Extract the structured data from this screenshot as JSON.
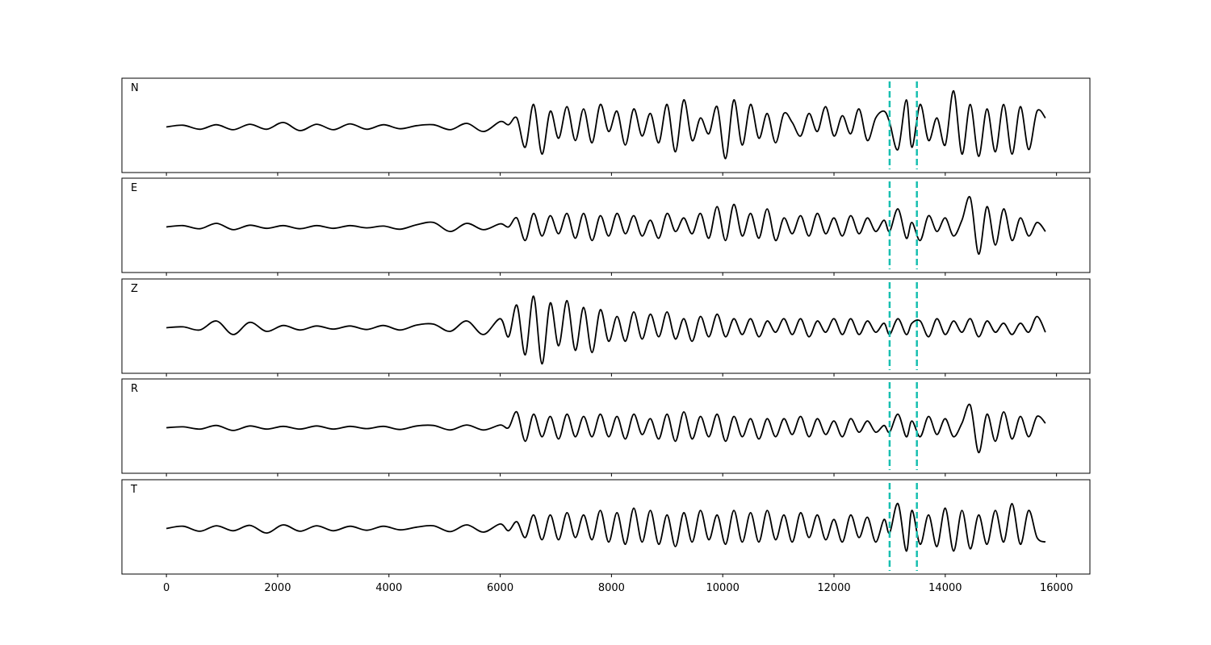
{
  "chart_data": {
    "type": "line",
    "layout": "stacked-panels",
    "grid": false,
    "xlim": [
      -800,
      16600
    ],
    "xticks": [
      0,
      2000,
      4000,
      6000,
      8000,
      10000,
      12000,
      14000,
      16000
    ],
    "markers": {
      "color": "#17bfb0",
      "style": "dashed",
      "x": [
        13000,
        13490
      ]
    },
    "trace_color": "#000000",
    "x_end": 15800,
    "panels": [
      {
        "label": "N",
        "series": {
          "x": [
            0,
            300,
            600,
            900,
            1200,
            1500,
            1800,
            2100,
            2400,
            2700,
            3000,
            3300,
            3600,
            3900,
            4200,
            4500,
            4800,
            5100,
            5400,
            5700,
            6000,
            6150,
            6300,
            6450,
            6600,
            6750,
            6900,
            7050,
            7200,
            7350,
            7500,
            7650,
            7800,
            7950,
            8100,
            8250,
            8400,
            8550,
            8700,
            8850,
            9000,
            9150,
            9300,
            9450,
            9600,
            9750,
            9900,
            10050,
            10200,
            10350,
            10500,
            10650,
            10800,
            10950,
            11100,
            11250,
            11400,
            11550,
            11700,
            11850,
            12000,
            12150,
            12300,
            12450,
            12600,
            12750,
            12900,
            13000,
            13150,
            13300,
            13400,
            13550,
            13700,
            13850,
            14000,
            14150,
            14300,
            14450,
            14600,
            14750,
            14900,
            15050,
            15200,
            15350,
            15500,
            15650,
            15800
          ],
          "y": [
            0,
            0.04,
            -0.05,
            0.05,
            -0.06,
            0.06,
            -0.05,
            0.1,
            -0.08,
            0.06,
            -0.06,
            0.07,
            -0.05,
            0.05,
            -0.04,
            0.03,
            0.05,
            -0.06,
            0.08,
            -0.1,
            0.12,
            0.05,
            0.2,
            -0.45,
            0.5,
            -0.6,
            0.35,
            -0.25,
            0.45,
            -0.3,
            0.4,
            -0.35,
            0.5,
            -0.1,
            0.35,
            -0.4,
            0.4,
            -0.2,
            0.3,
            -0.35,
            0.5,
            -0.55,
            0.6,
            -0.3,
            0.2,
            -0.15,
            0.45,
            -0.7,
            0.6,
            -0.4,
            0.5,
            -0.25,
            0.3,
            -0.35,
            0.3,
            0.1,
            -0.2,
            0.3,
            -0.1,
            0.45,
            -0.2,
            0.25,
            -0.15,
            0.4,
            -0.3,
            0.2,
            0.35,
            0.1,
            -0.5,
            0.6,
            -0.45,
            0.5,
            -0.3,
            0.2,
            -0.4,
            0.8,
            -0.6,
            0.5,
            -0.65,
            0.4,
            -0.55,
            0.5,
            -0.6,
            0.45,
            -0.5,
            0.35,
            0.2
          ]
        }
      },
      {
        "label": "E",
        "series": {
          "x": [
            0,
            300,
            600,
            900,
            1200,
            1500,
            1800,
            2100,
            2400,
            2700,
            3000,
            3300,
            3600,
            3900,
            4200,
            4500,
            4800,
            5100,
            5400,
            5700,
            6000,
            6150,
            6300,
            6450,
            6600,
            6750,
            6900,
            7050,
            7200,
            7350,
            7500,
            7650,
            7800,
            7950,
            8100,
            8250,
            8400,
            8550,
            8700,
            8850,
            9000,
            9150,
            9300,
            9450,
            9600,
            9750,
            9900,
            10050,
            10200,
            10350,
            10500,
            10650,
            10800,
            10950,
            11100,
            11250,
            11400,
            11550,
            11700,
            11850,
            12000,
            12150,
            12300,
            12450,
            12600,
            12750,
            12900,
            13000,
            13150,
            13300,
            13400,
            13550,
            13700,
            13850,
            14000,
            14150,
            14300,
            14450,
            14600,
            14750,
            14900,
            15050,
            15200,
            15350,
            15500,
            15650,
            15800
          ],
          "y": [
            0,
            0.03,
            -0.04,
            0.08,
            -0.06,
            0.04,
            -0.03,
            0.03,
            -0.04,
            0.03,
            -0.03,
            0.03,
            -0.02,
            0.02,
            -0.05,
            0.05,
            0.1,
            -0.1,
            0.08,
            -0.06,
            0.07,
            0.0,
            0.2,
            -0.3,
            0.3,
            -0.2,
            0.25,
            -0.15,
            0.3,
            -0.25,
            0.3,
            -0.3,
            0.25,
            -0.2,
            0.3,
            -0.15,
            0.25,
            -0.2,
            0.15,
            -0.25,
            0.3,
            -0.1,
            0.2,
            -0.15,
            0.3,
            -0.25,
            0.45,
            -0.3,
            0.5,
            -0.2,
            0.3,
            -0.25,
            0.4,
            -0.3,
            0.2,
            -0.15,
            0.25,
            -0.2,
            0.3,
            -0.15,
            0.2,
            -0.2,
            0.25,
            -0.15,
            0.2,
            -0.1,
            0.15,
            -0.1,
            0.4,
            -0.25,
            0.1,
            -0.3,
            0.25,
            -0.1,
            0.2,
            -0.2,
            0.15,
            0.65,
            -0.6,
            0.45,
            -0.4,
            0.4,
            -0.3,
            0.2,
            -0.2,
            0.1,
            -0.1
          ]
        }
      },
      {
        "label": "Z",
        "series": {
          "x": [
            0,
            300,
            600,
            900,
            1200,
            1500,
            1800,
            2100,
            2400,
            2700,
            3000,
            3300,
            3600,
            3900,
            4200,
            4500,
            4800,
            5100,
            5400,
            5700,
            6000,
            6150,
            6300,
            6450,
            6600,
            6750,
            6900,
            7050,
            7200,
            7350,
            7500,
            7650,
            7800,
            7950,
            8100,
            8250,
            8400,
            8550,
            8700,
            8850,
            9000,
            9150,
            9300,
            9450,
            9600,
            9750,
            9900,
            10050,
            10200,
            10350,
            10500,
            10650,
            10800,
            10950,
            11100,
            11250,
            11400,
            11550,
            11700,
            11850,
            12000,
            12150,
            12300,
            12450,
            12600,
            12750,
            12900,
            13000,
            13150,
            13300,
            13400,
            13550,
            13700,
            13850,
            14000,
            14150,
            14300,
            14450,
            14600,
            14750,
            14900,
            15050,
            15200,
            15350,
            15500,
            15650,
            15800
          ],
          "y": [
            0,
            0.02,
            -0.05,
            0.15,
            -0.15,
            0.12,
            -0.08,
            0.05,
            -0.05,
            0.04,
            -0.03,
            0.04,
            -0.04,
            0.05,
            -0.05,
            0.06,
            0.08,
            -0.08,
            0.15,
            -0.15,
            0.2,
            -0.2,
            0.5,
            -0.6,
            0.7,
            -0.8,
            0.55,
            -0.4,
            0.6,
            -0.5,
            0.45,
            -0.55,
            0.4,
            -0.3,
            0.25,
            -0.3,
            0.35,
            -0.25,
            0.3,
            -0.2,
            0.35,
            -0.25,
            0.2,
            -0.3,
            0.25,
            -0.2,
            0.3,
            -0.2,
            0.2,
            -0.15,
            0.2,
            -0.2,
            0.15,
            -0.1,
            0.2,
            -0.15,
            0.2,
            -0.2,
            0.15,
            -0.1,
            0.2,
            -0.15,
            0.2,
            -0.15,
            0.15,
            -0.1,
            0.1,
            -0.15,
            0.2,
            -0.15,
            0.1,
            0.15,
            -0.2,
            0.2,
            -0.15,
            0.15,
            -0.1,
            0.2,
            -0.2,
            0.15,
            -0.1,
            0.1,
            -0.15,
            0.1,
            -0.1,
            0.25,
            -0.1
          ]
        }
      },
      {
        "label": "R",
        "series": {
          "x": [
            0,
            300,
            600,
            900,
            1200,
            1500,
            1800,
            2100,
            2400,
            2700,
            3000,
            3300,
            3600,
            3900,
            4200,
            4500,
            4800,
            5100,
            5400,
            5700,
            6000,
            6150,
            6300,
            6450,
            6600,
            6750,
            6900,
            7050,
            7200,
            7350,
            7500,
            7650,
            7800,
            7950,
            8100,
            8250,
            8400,
            8550,
            8700,
            8850,
            9000,
            9150,
            9300,
            9450,
            9600,
            9750,
            9900,
            10050,
            10200,
            10350,
            10500,
            10650,
            10800,
            10950,
            11100,
            11250,
            11400,
            11550,
            11700,
            11850,
            12000,
            12150,
            12300,
            12450,
            12600,
            12750,
            12900,
            13000,
            13150,
            13300,
            13400,
            13550,
            13700,
            13850,
            14000,
            14150,
            14300,
            14450,
            14600,
            14750,
            14900,
            15050,
            15200,
            15350,
            15500,
            15650,
            15800
          ],
          "y": [
            0,
            0.02,
            -0.03,
            0.05,
            -0.06,
            0.04,
            -0.03,
            0.03,
            -0.03,
            0.04,
            -0.03,
            0.03,
            -0.02,
            0.03,
            -0.04,
            0.04,
            0.05,
            -0.05,
            0.06,
            -0.05,
            0.06,
            0.0,
            0.35,
            -0.3,
            0.3,
            -0.2,
            0.25,
            -0.25,
            0.3,
            -0.2,
            0.25,
            -0.2,
            0.3,
            -0.2,
            0.25,
            -0.25,
            0.3,
            -0.15,
            0.2,
            -0.25,
            0.3,
            -0.3,
            0.35,
            -0.25,
            0.25,
            -0.2,
            0.3,
            -0.3,
            0.25,
            -0.2,
            0.2,
            -0.25,
            0.2,
            -0.2,
            0.2,
            -0.15,
            0.25,
            -0.2,
            0.2,
            -0.15,
            0.15,
            -0.2,
            0.2,
            -0.1,
            0.15,
            -0.1,
            0.05,
            -0.1,
            0.3,
            -0.2,
            0.15,
            -0.2,
            0.25,
            -0.15,
            0.2,
            -0.2,
            0.1,
            0.5,
            -0.55,
            0.3,
            -0.3,
            0.35,
            -0.25,
            0.25,
            -0.2,
            0.25,
            0.1
          ]
        }
      },
      {
        "label": "T",
        "series": {
          "x": [
            0,
            300,
            600,
            900,
            1200,
            1500,
            1800,
            2100,
            2400,
            2700,
            3000,
            3300,
            3600,
            3900,
            4200,
            4500,
            4800,
            5100,
            5400,
            5700,
            6000,
            6150,
            6300,
            6450,
            6600,
            6750,
            6900,
            7050,
            7200,
            7350,
            7500,
            7650,
            7800,
            7950,
            8100,
            8250,
            8400,
            8550,
            8700,
            8850,
            9000,
            9150,
            9300,
            9450,
            9600,
            9750,
            9900,
            10050,
            10200,
            10350,
            10500,
            10650,
            10800,
            10950,
            11100,
            11250,
            11400,
            11550,
            11700,
            11850,
            12000,
            12150,
            12300,
            12450,
            12600,
            12750,
            12900,
            13000,
            13150,
            13300,
            13400,
            13550,
            13700,
            13850,
            14000,
            14150,
            14300,
            14450,
            14600,
            14750,
            14900,
            15050,
            15200,
            15350,
            15500,
            15650,
            15800
          ],
          "y": [
            0,
            0.05,
            -0.06,
            0.06,
            -0.05,
            0.07,
            -0.1,
            0.08,
            -0.06,
            0.06,
            -0.05,
            0.05,
            -0.04,
            0.05,
            -0.03,
            0.03,
            0.06,
            -0.07,
            0.08,
            -0.08,
            0.1,
            -0.05,
            0.15,
            -0.2,
            0.3,
            -0.25,
            0.3,
            -0.25,
            0.35,
            -0.2,
            0.3,
            -0.25,
            0.4,
            -0.3,
            0.35,
            -0.35,
            0.45,
            -0.3,
            0.4,
            -0.35,
            0.3,
            -0.4,
            0.35,
            -0.3,
            0.4,
            -0.25,
            0.3,
            -0.35,
            0.4,
            -0.3,
            0.35,
            -0.3,
            0.4,
            -0.25,
            0.3,
            -0.3,
            0.35,
            -0.2,
            0.3,
            -0.25,
            0.2,
            -0.3,
            0.3,
            -0.2,
            0.25,
            -0.3,
            0.2,
            -0.1,
            0.55,
            -0.5,
            0.4,
            -0.35,
            0.3,
            -0.4,
            0.45,
            -0.5,
            0.4,
            -0.45,
            0.3,
            -0.35,
            0.4,
            -0.3,
            0.55,
            -0.35,
            0.4,
            -0.2,
            -0.3
          ]
        }
      }
    ]
  }
}
